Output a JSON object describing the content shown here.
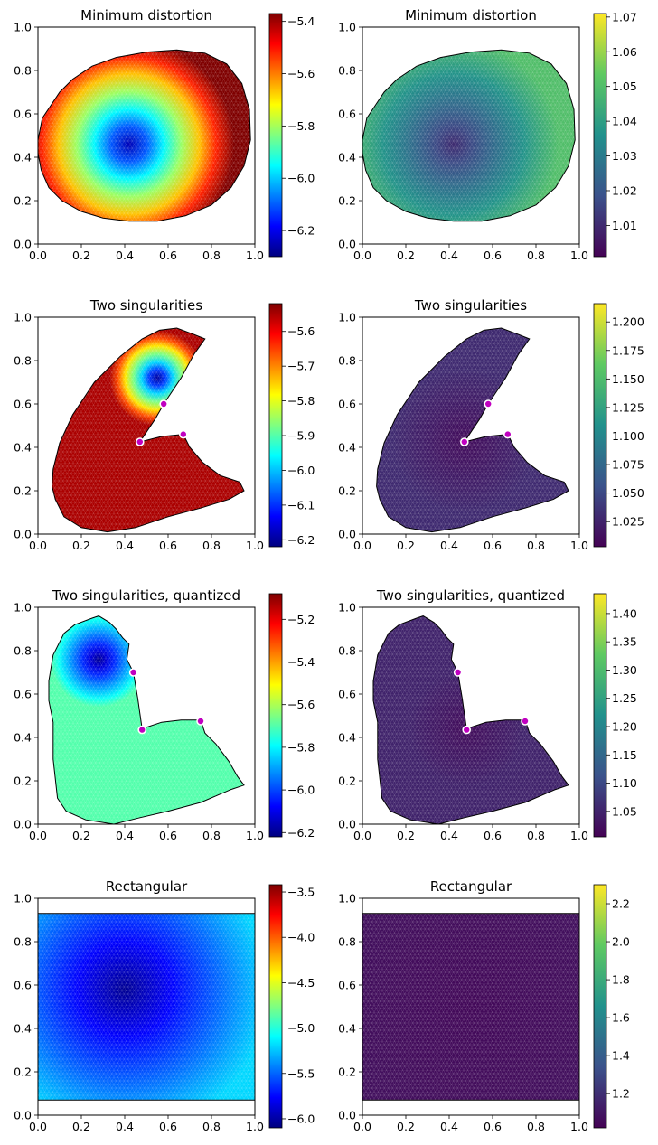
{
  "chart_data": [
    {
      "type": "heatmap",
      "title": "Minimum distortion",
      "colormap": "jet",
      "xlim": [
        0,
        1
      ],
      "ylim": [
        0,
        1
      ],
      "xticks": [
        "0.0",
        "0.2",
        "0.4",
        "0.6",
        "0.8",
        "1.0"
      ],
      "yticks": [
        "0.0",
        "0.2",
        "0.4",
        "0.6",
        "0.8",
        "1.0"
      ],
      "colorbar_range": [
        -6.3,
        -5.37
      ],
      "colorbar_ticks": [
        "-5.4",
        "-5.6",
        "-5.8",
        "-6.0",
        "-6.2"
      ],
      "colorbar_tick_values": [
        -5.4,
        -5.6,
        -5.8,
        -6.0,
        -6.2
      ],
      "boundary": [
        [
          0.0,
          0.48
        ],
        [
          0.02,
          0.58
        ],
        [
          0.06,
          0.64
        ],
        [
          0.1,
          0.7
        ],
        [
          0.16,
          0.76
        ],
        [
          0.25,
          0.82
        ],
        [
          0.36,
          0.86
        ],
        [
          0.5,
          0.885
        ],
        [
          0.64,
          0.895
        ],
        [
          0.77,
          0.88
        ],
        [
          0.87,
          0.83
        ],
        [
          0.94,
          0.74
        ],
        [
          0.975,
          0.62
        ],
        [
          0.98,
          0.48
        ],
        [
          0.95,
          0.36
        ],
        [
          0.89,
          0.26
        ],
        [
          0.8,
          0.18
        ],
        [
          0.68,
          0.13
        ],
        [
          0.55,
          0.105
        ],
        [
          0.42,
          0.105
        ],
        [
          0.3,
          0.12
        ],
        [
          0.2,
          0.15
        ],
        [
          0.11,
          0.2
        ],
        [
          0.05,
          0.26
        ],
        [
          0.015,
          0.34
        ],
        [
          0.0,
          0.42
        ]
      ],
      "field": {
        "center": [
          0.42,
          0.46
        ],
        "radius": [
          0.22,
          0.13
        ],
        "min": -6.25,
        "max": -5.37
      },
      "singular_points": []
    },
    {
      "type": "heatmap",
      "title": "Minimum distortion",
      "colormap": "viridis",
      "xlim": [
        0,
        1
      ],
      "ylim": [
        0,
        1
      ],
      "xticks": [
        "0.0",
        "0.2",
        "0.4",
        "0.6",
        "0.8",
        "1.0"
      ],
      "yticks": [
        "0.0",
        "0.2",
        "0.4",
        "0.6",
        "0.8",
        "1.0"
      ],
      "colorbar_range": [
        1.001,
        1.071
      ],
      "colorbar_ticks": [
        "1.07",
        "1.06",
        "1.05",
        "1.04",
        "1.03",
        "1.02",
        "1.01"
      ],
      "colorbar_tick_values": [
        1.07,
        1.06,
        1.05,
        1.04,
        1.03,
        1.02,
        1.01
      ],
      "boundary": [
        [
          0.0,
          0.48
        ],
        [
          0.02,
          0.58
        ],
        [
          0.06,
          0.64
        ],
        [
          0.1,
          0.7
        ],
        [
          0.16,
          0.76
        ],
        [
          0.25,
          0.82
        ],
        [
          0.36,
          0.86
        ],
        [
          0.5,
          0.885
        ],
        [
          0.64,
          0.895
        ],
        [
          0.77,
          0.88
        ],
        [
          0.87,
          0.83
        ],
        [
          0.94,
          0.74
        ],
        [
          0.975,
          0.62
        ],
        [
          0.98,
          0.48
        ],
        [
          0.95,
          0.36
        ],
        [
          0.89,
          0.26
        ],
        [
          0.8,
          0.18
        ],
        [
          0.68,
          0.13
        ],
        [
          0.55,
          0.105
        ],
        [
          0.42,
          0.105
        ],
        [
          0.3,
          0.12
        ],
        [
          0.2,
          0.15
        ],
        [
          0.11,
          0.2
        ],
        [
          0.05,
          0.26
        ],
        [
          0.015,
          0.34
        ],
        [
          0.0,
          0.42
        ]
      ],
      "field": {
        "center": [
          0.42,
          0.46
        ],
        "radius": [
          0.22,
          0.13
        ],
        "min": 1.01,
        "max": 1.05
      },
      "singular_points": []
    },
    {
      "type": "heatmap",
      "title": "Two singularities",
      "colormap": "jet",
      "xlim": [
        0,
        1
      ],
      "ylim": [
        0,
        1
      ],
      "xticks": [
        "0.0",
        "0.2",
        "0.4",
        "0.6",
        "0.8",
        "1.0"
      ],
      "yticks": [
        "0.0",
        "0.2",
        "0.4",
        "0.6",
        "0.8",
        "1.0"
      ],
      "colorbar_range": [
        -6.22,
        -5.52
      ],
      "colorbar_ticks": [
        "-5.6",
        "-5.7",
        "-5.8",
        "-5.9",
        "-6.0",
        "-6.1",
        "-6.2"
      ],
      "colorbar_tick_values": [
        -5.6,
        -5.7,
        -5.8,
        -5.9,
        -6.0,
        -6.1,
        -6.2
      ],
      "boundary": [
        [
          0.07,
          0.3
        ],
        [
          0.1,
          0.42
        ],
        [
          0.16,
          0.55
        ],
        [
          0.26,
          0.7
        ],
        [
          0.38,
          0.82
        ],
        [
          0.48,
          0.9
        ],
        [
          0.56,
          0.94
        ],
        [
          0.64,
          0.95
        ],
        [
          0.72,
          0.92
        ],
        [
          0.77,
          0.9
        ],
        [
          0.72,
          0.83
        ],
        [
          0.66,
          0.72
        ],
        [
          0.62,
          0.66
        ],
        [
          0.58,
          0.6
        ],
        [
          0.54,
          0.53
        ],
        [
          0.47,
          0.425
        ],
        [
          0.57,
          0.45
        ],
        [
          0.67,
          0.46
        ],
        [
          0.7,
          0.4
        ],
        [
          0.76,
          0.33
        ],
        [
          0.84,
          0.27
        ],
        [
          0.93,
          0.24
        ],
        [
          0.95,
          0.2
        ],
        [
          0.88,
          0.16
        ],
        [
          0.75,
          0.12
        ],
        [
          0.6,
          0.08
        ],
        [
          0.45,
          0.03
        ],
        [
          0.32,
          0.01
        ],
        [
          0.2,
          0.03
        ],
        [
          0.12,
          0.08
        ],
        [
          0.08,
          0.16
        ],
        [
          0.065,
          0.22
        ]
      ],
      "field": {
        "center": [
          0.55,
          0.72
        ],
        "radius": [
          0.1,
          0.1
        ],
        "min": -6.2,
        "max": -5.55
      },
      "singular_points": [
        [
          0.58,
          0.6
        ],
        [
          0.47,
          0.425
        ],
        [
          0.67,
          0.46
        ]
      ]
    },
    {
      "type": "heatmap",
      "title": "Two singularities",
      "colormap": "viridis",
      "xlim": [
        0,
        1
      ],
      "ylim": [
        0,
        1
      ],
      "xticks": [
        "0.0",
        "0.2",
        "0.4",
        "0.6",
        "0.8",
        "1.0"
      ],
      "yticks": [
        "0.0",
        "0.2",
        "0.4",
        "0.6",
        "0.8",
        "1.0"
      ],
      "colorbar_range": [
        1.003,
        1.216
      ],
      "colorbar_ticks": [
        "1.200",
        "1.175",
        "1.150",
        "1.125",
        "1.100",
        "1.075",
        "1.050",
        "1.025"
      ],
      "colorbar_tick_values": [
        1.2,
        1.175,
        1.15,
        1.125,
        1.1,
        1.075,
        1.05,
        1.025
      ],
      "boundary": [
        [
          0.07,
          0.3
        ],
        [
          0.1,
          0.42
        ],
        [
          0.16,
          0.55
        ],
        [
          0.26,
          0.7
        ],
        [
          0.38,
          0.82
        ],
        [
          0.48,
          0.9
        ],
        [
          0.56,
          0.94
        ],
        [
          0.64,
          0.95
        ],
        [
          0.72,
          0.92
        ],
        [
          0.77,
          0.9
        ],
        [
          0.72,
          0.83
        ],
        [
          0.66,
          0.72
        ],
        [
          0.62,
          0.66
        ],
        [
          0.58,
          0.6
        ],
        [
          0.54,
          0.53
        ],
        [
          0.47,
          0.425
        ],
        [
          0.57,
          0.45
        ],
        [
          0.67,
          0.46
        ],
        [
          0.7,
          0.4
        ],
        [
          0.76,
          0.33
        ],
        [
          0.84,
          0.27
        ],
        [
          0.93,
          0.24
        ],
        [
          0.95,
          0.2
        ],
        [
          0.88,
          0.16
        ],
        [
          0.75,
          0.12
        ],
        [
          0.6,
          0.08
        ],
        [
          0.45,
          0.03
        ],
        [
          0.32,
          0.01
        ],
        [
          0.2,
          0.03
        ],
        [
          0.12,
          0.08
        ],
        [
          0.08,
          0.16
        ],
        [
          0.065,
          0.22
        ]
      ],
      "field": {
        "center": [
          0.47,
          0.43
        ],
        "radius": [
          0.15,
          0.15
        ],
        "min": 1.01,
        "max": 1.03
      },
      "singular_points": [
        [
          0.58,
          0.6
        ],
        [
          0.47,
          0.425
        ],
        [
          0.67,
          0.46
        ]
      ]
    },
    {
      "type": "heatmap",
      "title": "Two singularities, quantized",
      "colormap": "jet",
      "xlim": [
        0,
        1
      ],
      "ylim": [
        0,
        1
      ],
      "xticks": [
        "0.0",
        "0.2",
        "0.4",
        "0.6",
        "0.8",
        "1.0"
      ],
      "yticks": [
        "0.0",
        "0.2",
        "0.4",
        "0.6",
        "0.8",
        "1.0"
      ],
      "colorbar_range": [
        -6.22,
        -5.08
      ],
      "colorbar_ticks": [
        "-5.2",
        "-5.4",
        "-5.6",
        "-5.8",
        "-6.0",
        "-6.2"
      ],
      "colorbar_tick_values": [
        -5.2,
        -5.4,
        -5.6,
        -5.8,
        -6.0,
        -6.2
      ],
      "boundary": [
        [
          0.05,
          0.66
        ],
        [
          0.07,
          0.78
        ],
        [
          0.12,
          0.88
        ],
        [
          0.17,
          0.92
        ],
        [
          0.25,
          0.95
        ],
        [
          0.28,
          0.96
        ],
        [
          0.33,
          0.93
        ],
        [
          0.36,
          0.9
        ],
        [
          0.39,
          0.86
        ],
        [
          0.42,
          0.83
        ],
        [
          0.41,
          0.76
        ],
        [
          0.44,
          0.7
        ],
        [
          0.46,
          0.58
        ],
        [
          0.48,
          0.44
        ],
        [
          0.57,
          0.47
        ],
        [
          0.66,
          0.48
        ],
        [
          0.75,
          0.48
        ],
        [
          0.77,
          0.42
        ],
        [
          0.82,
          0.37
        ],
        [
          0.88,
          0.29
        ],
        [
          0.92,
          0.22
        ],
        [
          0.95,
          0.18
        ],
        [
          0.89,
          0.16
        ],
        [
          0.75,
          0.1
        ],
        [
          0.6,
          0.06
        ],
        [
          0.47,
          0.03
        ],
        [
          0.35,
          0.0
        ],
        [
          0.22,
          0.02
        ],
        [
          0.13,
          0.06
        ],
        [
          0.09,
          0.12
        ],
        [
          0.07,
          0.3
        ],
        [
          0.07,
          0.47
        ],
        [
          0.05,
          0.57
        ]
      ],
      "field": {
        "center": [
          0.28,
          0.76
        ],
        "radius": [
          0.1,
          0.1
        ],
        "min": -6.2,
        "max": -5.7
      },
      "singular_points": [
        [
          0.44,
          0.7
        ],
        [
          0.48,
          0.435
        ],
        [
          0.75,
          0.475
        ]
      ]
    },
    {
      "type": "heatmap",
      "title": "Two singularities, quantized",
      "colormap": "viridis",
      "xlim": [
        0,
        1
      ],
      "ylim": [
        0,
        1
      ],
      "xticks": [
        "0.0",
        "0.2",
        "0.4",
        "0.6",
        "0.8",
        "1.0"
      ],
      "yticks": [
        "0.0",
        "0.2",
        "0.4",
        "0.6",
        "0.8",
        "1.0"
      ],
      "colorbar_range": [
        1.005,
        1.435
      ],
      "colorbar_ticks": [
        "1.40",
        "1.35",
        "1.30",
        "1.25",
        "1.20",
        "1.15",
        "1.10",
        "1.05"
      ],
      "colorbar_tick_values": [
        1.4,
        1.35,
        1.3,
        1.25,
        1.2,
        1.15,
        1.1,
        1.05
      ],
      "boundary": [
        [
          0.05,
          0.66
        ],
        [
          0.07,
          0.78
        ],
        [
          0.12,
          0.88
        ],
        [
          0.17,
          0.92
        ],
        [
          0.25,
          0.95
        ],
        [
          0.28,
          0.96
        ],
        [
          0.33,
          0.93
        ],
        [
          0.36,
          0.9
        ],
        [
          0.39,
          0.86
        ],
        [
          0.42,
          0.83
        ],
        [
          0.41,
          0.76
        ],
        [
          0.44,
          0.7
        ],
        [
          0.46,
          0.58
        ],
        [
          0.48,
          0.44
        ],
        [
          0.57,
          0.47
        ],
        [
          0.66,
          0.48
        ],
        [
          0.75,
          0.48
        ],
        [
          0.77,
          0.42
        ],
        [
          0.82,
          0.37
        ],
        [
          0.88,
          0.29
        ],
        [
          0.92,
          0.22
        ],
        [
          0.95,
          0.18
        ],
        [
          0.89,
          0.16
        ],
        [
          0.75,
          0.1
        ],
        [
          0.6,
          0.06
        ],
        [
          0.47,
          0.03
        ],
        [
          0.35,
          0.0
        ],
        [
          0.22,
          0.02
        ],
        [
          0.13,
          0.06
        ],
        [
          0.09,
          0.12
        ],
        [
          0.07,
          0.3
        ],
        [
          0.07,
          0.47
        ],
        [
          0.05,
          0.57
        ]
      ],
      "field": {
        "center": [
          0.48,
          0.44
        ],
        "radius": [
          0.12,
          0.12
        ],
        "min": 1.02,
        "max": 1.05
      },
      "singular_points": [
        [
          0.44,
          0.7
        ],
        [
          0.48,
          0.435
        ],
        [
          0.75,
          0.475
        ]
      ]
    },
    {
      "type": "heatmap",
      "title": "Rectangular",
      "colormap": "jet",
      "xlim": [
        0,
        1
      ],
      "ylim": [
        0,
        1
      ],
      "xticks": [
        "0.0",
        "0.2",
        "0.4",
        "0.6",
        "0.8",
        "1.0"
      ],
      "yticks": [
        "0.0",
        "0.2",
        "0.4",
        "0.6",
        "0.8",
        "1.0"
      ],
      "colorbar_range": [
        -6.1,
        -3.42
      ],
      "colorbar_ticks": [
        "-3.5",
        "-4.0",
        "-4.5",
        "-5.0",
        "-5.5",
        "-6.0"
      ],
      "colorbar_tick_values": [
        -3.5,
        -4.0,
        -4.5,
        -5.0,
        -5.5,
        -6.0
      ],
      "boundary": [
        [
          0.0,
          0.07
        ],
        [
          1.0,
          0.07
        ],
        [
          1.0,
          0.93
        ],
        [
          0.0,
          0.93
        ]
      ],
      "field": {
        "center": [
          0.4,
          0.58
        ],
        "radius": [
          0.3,
          0.22
        ],
        "min": -6.05,
        "max": -5.2
      },
      "singular_points": []
    },
    {
      "type": "heatmap",
      "title": "Rectangular",
      "colormap": "viridis",
      "xlim": [
        0,
        1
      ],
      "ylim": [
        0,
        1
      ],
      "xticks": [
        "0.0",
        "0.2",
        "0.4",
        "0.6",
        "0.8",
        "1.0"
      ],
      "yticks": [
        "0.0",
        "0.2",
        "0.4",
        "0.6",
        "0.8",
        "1.0"
      ],
      "colorbar_range": [
        1.02,
        2.3
      ],
      "colorbar_ticks": [
        "2.2",
        "2.0",
        "1.8",
        "1.6",
        "1.4",
        "1.2"
      ],
      "colorbar_tick_values": [
        2.2,
        2.0,
        1.8,
        1.6,
        1.4,
        1.2
      ],
      "boundary": [
        [
          0.0,
          0.07
        ],
        [
          1.0,
          0.07
        ],
        [
          1.0,
          0.93
        ],
        [
          0.0,
          0.93
        ]
      ],
      "field": {
        "center": [
          0.5,
          0.5
        ],
        "radius": [
          0.5,
          0.43
        ],
        "min": 1.05,
        "max": 1.1
      },
      "singular_points": []
    }
  ]
}
